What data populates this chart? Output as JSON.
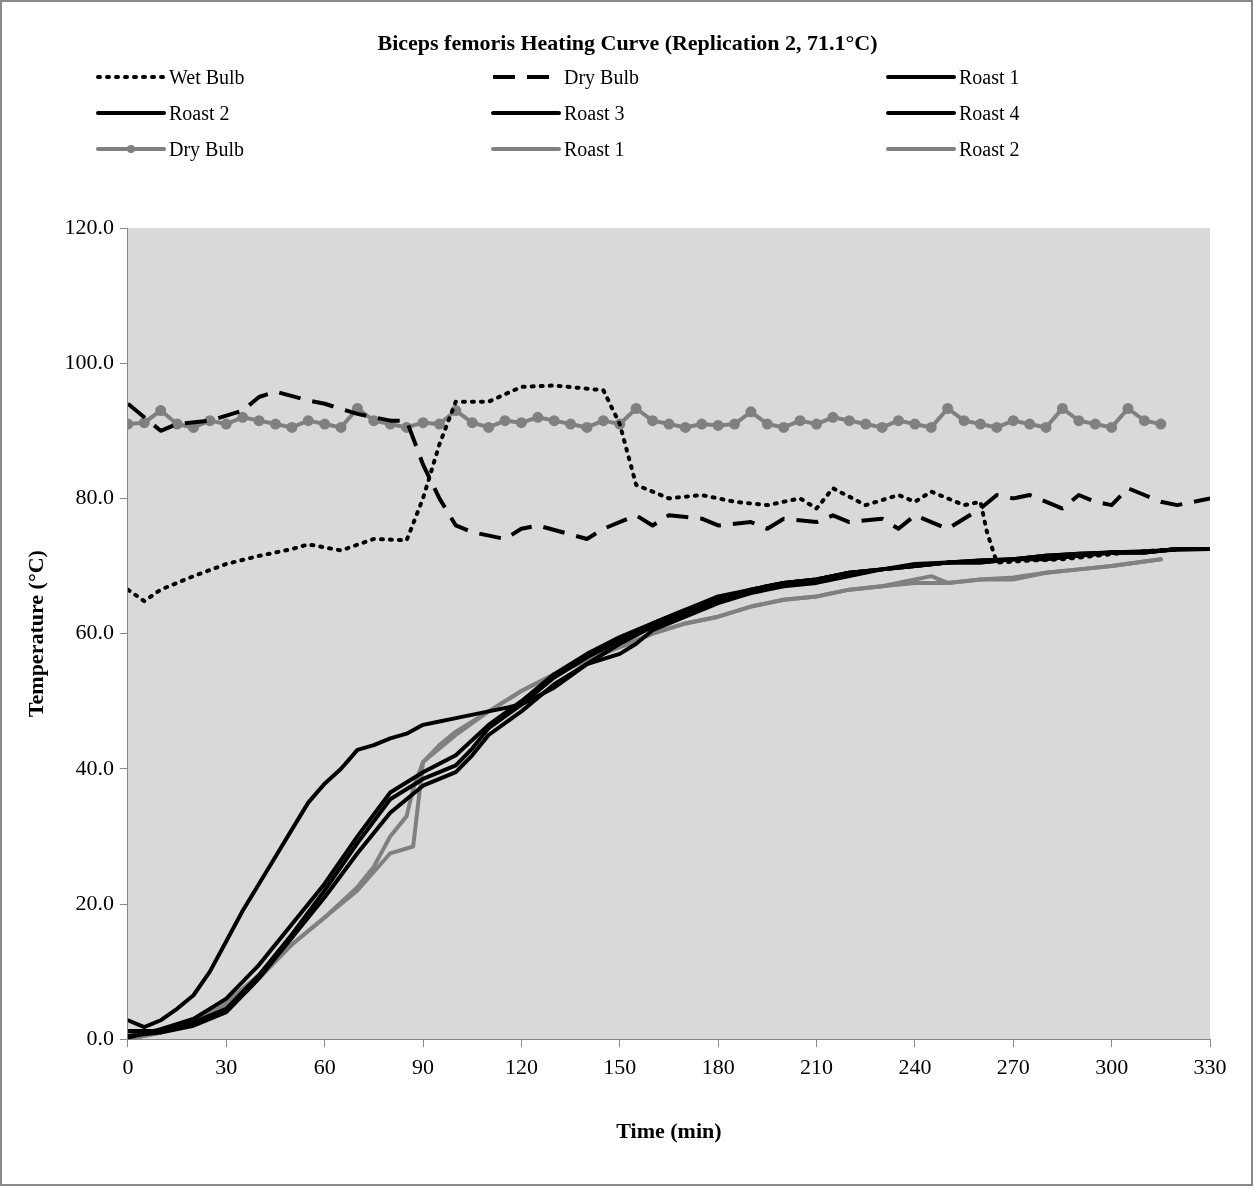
{
  "chart_data": {
    "type": "line",
    "title": "Biceps femoris Heating Curve (Replication 2, 71.1°C)",
    "xlabel": "Time (min)",
    "ylabel": "Temperature (°C)",
    "xlim": [
      0,
      330
    ],
    "xticks": [
      0,
      30,
      60,
      90,
      120,
      150,
      180,
      210,
      240,
      270,
      300,
      330
    ],
    "ylim": [
      0,
      120
    ],
    "yticks": [
      {
        "value": 0,
        "label": "0.0"
      },
      {
        "value": 20,
        "label": "20.0"
      },
      {
        "value": 40,
        "label": "40.0"
      },
      {
        "value": 60,
        "label": "60.0"
      },
      {
        "value": 80,
        "label": "80.0"
      },
      {
        "value": 100,
        "label": "100.0"
      },
      {
        "value": 120,
        "label": "120.0"
      }
    ],
    "grid": false,
    "legend": "top",
    "series": [
      {
        "name": "Wet Bulb",
        "color": "#000000",
        "line_style": "dotted",
        "x": [
          0,
          5,
          10,
          20,
          30,
          40,
          50,
          55,
          65,
          75,
          85,
          90,
          95,
          100,
          110,
          120,
          130,
          145,
          150,
          155,
          165,
          175,
          185,
          195,
          205,
          210,
          215,
          225,
          235,
          240,
          245,
          255,
          260,
          262,
          265,
          275,
          285,
          295,
          305,
          320,
          330
        ],
        "values": [
          66.5,
          64.8,
          66.5,
          68.5,
          70.3,
          71.5,
          72.5,
          73.2,
          72.3,
          74,
          73.8,
          80,
          88,
          94.3,
          94.3,
          96.5,
          96.7,
          96,
          91,
          82,
          80,
          80.5,
          79.5,
          79,
          80,
          78.5,
          81.5,
          79,
          80.5,
          79.5,
          81,
          79,
          79.5,
          75,
          70.5,
          70.8,
          71,
          71.5,
          72,
          72.5,
          72.5
        ]
      },
      {
        "name": "Dry Bulb",
        "color": "#000000",
        "line_style": "dashed",
        "x": [
          0,
          10,
          15,
          25,
          35,
          40,
          45,
          55,
          60,
          70,
          80,
          85,
          90,
          95,
          100,
          105,
          115,
          120,
          125,
          140,
          145,
          155,
          160,
          165,
          175,
          180,
          190,
          195,
          200,
          210,
          215,
          220,
          230,
          235,
          240,
          250,
          255,
          260,
          265,
          270,
          275,
          285,
          290,
          295,
          300,
          305,
          310,
          315,
          320,
          330
        ],
        "values": [
          94,
          90,
          91,
          91.5,
          93,
          95,
          95.8,
          94.5,
          94,
          92.5,
          91.5,
          91.5,
          85,
          80,
          76,
          75,
          74,
          75.5,
          76,
          74,
          75.5,
          77.5,
          76,
          77.5,
          77,
          76,
          76.5,
          75.5,
          77,
          76.5,
          77.5,
          76.5,
          77,
          75.5,
          77.5,
          75.5,
          77,
          78.5,
          80.5,
          80,
          80.5,
          78.5,
          80.5,
          79.5,
          79,
          81.5,
          80.5,
          79.5,
          79,
          80
        ]
      },
      {
        "name": "Roast 1",
        "color": "#000000",
        "line_style": "solid",
        "x": [
          0,
          5,
          10,
          15,
          20,
          25,
          30,
          35,
          40,
          45,
          50,
          55,
          60,
          65,
          70,
          75,
          80,
          85,
          90,
          95,
          100,
          110,
          120,
          130,
          140,
          150,
          160,
          170,
          180,
          190,
          200,
          210,
          220,
          230,
          240,
          250,
          260,
          270,
          280,
          290,
          300,
          310,
          320,
          330
        ],
        "values": [
          2.8,
          1.8,
          2.8,
          4.5,
          6.5,
          10,
          14.5,
          19,
          23,
          27,
          31,
          35,
          37.8,
          40,
          42.8,
          43.5,
          44.5,
          45.2,
          46.5,
          47,
          47.5,
          48.5,
          49.5,
          52,
          55.5,
          58.5,
          61,
          63,
          65,
          66.5,
          67.5,
          68,
          69,
          69.5,
          70.3,
          70.5,
          70.8,
          71,
          71.5,
          71.8,
          72,
          72.2,
          72.4,
          72.5
        ]
      },
      {
        "name": "Roast 2",
        "color": "#000000",
        "line_style": "solid",
        "x": [
          0,
          10,
          20,
          30,
          40,
          50,
          60,
          70,
          80,
          90,
          100,
          105,
          110,
          120,
          130,
          140,
          150,
          160,
          170,
          180,
          190,
          200,
          210,
          220,
          230,
          240,
          250,
          260,
          270,
          280,
          290,
          300,
          310,
          320,
          330
        ],
        "values": [
          1.2,
          1.2,
          2.5,
          4.5,
          9.5,
          15.5,
          22,
          29,
          35.5,
          38.5,
          40.5,
          43,
          46,
          49.5,
          53.5,
          56.5,
          59,
          61.5,
          63.5,
          65.5,
          66.5,
          67.5,
          68,
          69,
          69.5,
          70,
          70.5,
          70.8,
          71,
          71.5,
          71.8,
          72,
          72,
          72.5,
          72.5
        ]
      },
      {
        "name": "Roast 3",
        "color": "#000000",
        "line_style": "solid",
        "x": [
          0,
          10,
          20,
          30,
          40,
          50,
          60,
          70,
          80,
          90,
          100,
          105,
          110,
          120,
          130,
          140,
          150,
          155,
          160,
          170,
          180,
          190,
          200,
          210,
          220,
          230,
          240,
          250,
          260,
          270,
          280,
          290,
          300,
          310,
          320,
          330
        ],
        "values": [
          0.5,
          1,
          2,
          4,
          9,
          15,
          21,
          27.5,
          33.5,
          37.5,
          39.5,
          42,
          45,
          48.5,
          52.5,
          55.5,
          57,
          58.5,
          60.5,
          62.5,
          64.5,
          66,
          67,
          67.5,
          68.5,
          69.5,
          70,
          70.5,
          70.5,
          71,
          71,
          71.5,
          72,
          72,
          72.5,
          72.5
        ]
      },
      {
        "name": "Roast 4",
        "color": "#000000",
        "line_style": "solid",
        "x": [
          0,
          10,
          20,
          30,
          40,
          50,
          60,
          70,
          80,
          90,
          100,
          110,
          120,
          130,
          140,
          150,
          160,
          170,
          180,
          190,
          200,
          210,
          220,
          230,
          240,
          250,
          260,
          270,
          280,
          290,
          300,
          310,
          320,
          330
        ],
        "values": [
          0.2,
          1.5,
          3,
          6,
          11,
          17,
          23,
          30,
          36.5,
          39.5,
          42,
          46.5,
          50,
          54,
          57,
          59.5,
          61.5,
          63.5,
          65,
          66.5,
          67.5,
          68,
          69,
          69.5,
          70,
          70.5,
          70.5,
          71,
          71.5,
          71.5,
          72,
          72,
          72.5,
          72.5
        ]
      },
      {
        "name": "Dry Bulb",
        "color": "#808080",
        "line_style": "solid",
        "marker": "circle",
        "x": [
          0,
          5,
          10,
          15,
          20,
          25,
          30,
          35,
          40,
          45,
          50,
          55,
          60,
          65,
          70,
          75,
          80,
          85,
          90,
          95,
          100,
          105,
          110,
          115,
          120,
          125,
          130,
          135,
          140,
          145,
          150,
          155,
          160,
          165,
          170,
          175,
          180,
          185,
          190,
          195,
          200,
          205,
          210,
          215,
          220,
          225,
          230,
          235,
          240,
          245,
          250,
          255,
          260,
          265,
          270,
          275,
          280,
          285,
          290,
          295,
          300,
          305,
          310,
          315
        ],
        "values": [
          91,
          91.2,
          93,
          91,
          90.5,
          91.5,
          91,
          92,
          91.5,
          91,
          90.5,
          91.5,
          91,
          90.5,
          93.3,
          91.5,
          91,
          90.5,
          91.2,
          91,
          93,
          91.2,
          90.5,
          91.5,
          91.2,
          92,
          91.5,
          91,
          90.5,
          91.5,
          91,
          93.3,
          91.5,
          91,
          90.5,
          91,
          90.8,
          91,
          92.8,
          91,
          90.5,
          91.5,
          91,
          92,
          91.5,
          91,
          90.5,
          91.5,
          91,
          90.5,
          93.3,
          91.5,
          91,
          90.5,
          91.5,
          91,
          90.5,
          93.3,
          91.5,
          91,
          90.5,
          93.3,
          91.5,
          91
        ]
      },
      {
        "name": "Roast 1",
        "color": "#808080",
        "line_style": "solid",
        "x": [
          0,
          10,
          15,
          20,
          30,
          40,
          50,
          60,
          70,
          75,
          80,
          85,
          87,
          90,
          95,
          100,
          110,
          120,
          130,
          140,
          150,
          160,
          170,
          180,
          190,
          200,
          210,
          220,
          230,
          240,
          245,
          250,
          260,
          270,
          280,
          290,
          300,
          315
        ],
        "values": [
          0,
          1,
          2,
          3,
          5.5,
          9.5,
          14,
          18,
          22.5,
          25.5,
          30,
          33,
          37,
          41,
          43.5,
          45.5,
          48.5,
          51.5,
          54,
          56,
          58,
          60,
          61.5,
          62.5,
          64,
          65,
          65.5,
          66.5,
          67,
          68,
          68.5,
          67.5,
          68,
          68.3,
          69,
          69.5,
          70,
          71
        ]
      },
      {
        "name": "Roast 2",
        "color": "#808080",
        "line_style": "solid",
        "x": [
          0,
          10,
          20,
          30,
          40,
          50,
          60,
          70,
          80,
          87,
          90,
          100,
          110,
          120,
          130,
          140,
          150,
          160,
          170,
          180,
          190,
          200,
          210,
          220,
          230,
          240,
          250,
          260,
          270,
          280,
          290,
          300,
          315
        ],
        "values": [
          0,
          1,
          3,
          5,
          9,
          14,
          18,
          22,
          27.5,
          28.5,
          41,
          45,
          48.5,
          51.5,
          54,
          56.5,
          58,
          60,
          61.5,
          62.5,
          64,
          65,
          65.5,
          66.5,
          67,
          67.5,
          67.5,
          68,
          68,
          69,
          69.5,
          70,
          71
        ]
      }
    ]
  }
}
